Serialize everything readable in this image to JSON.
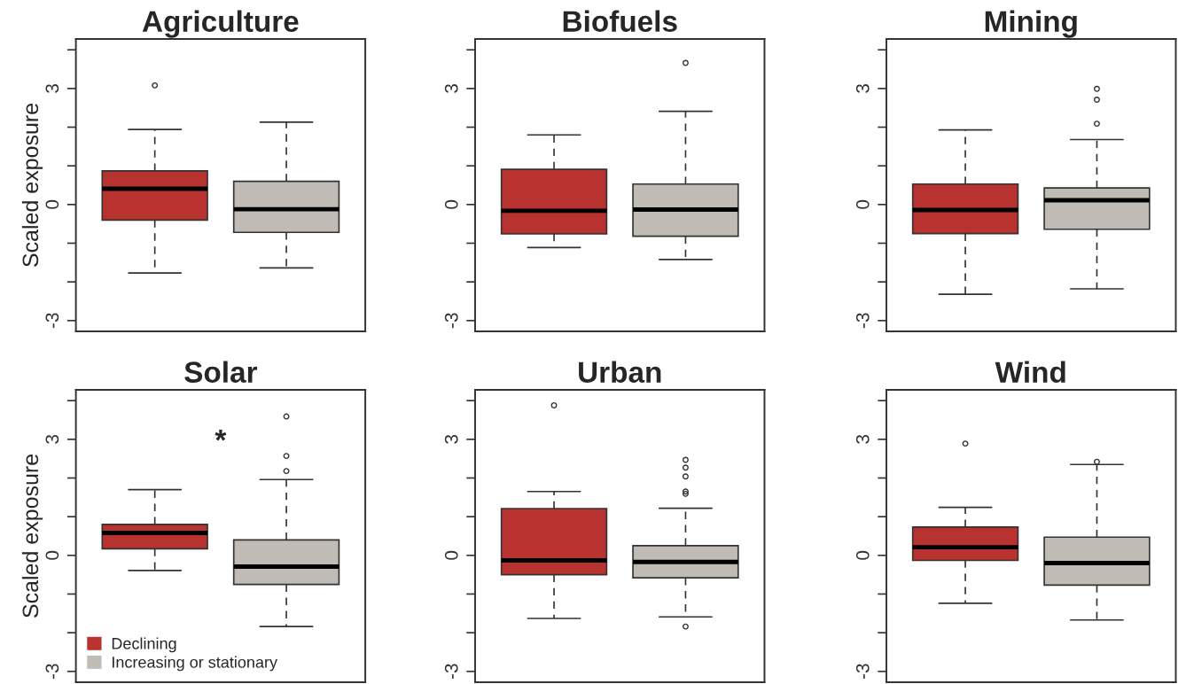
{
  "chart_data": [
    {
      "type": "box",
      "title": "Agriculture",
      "ylabel": "Scaled exposure",
      "categories": [
        null,
        null
      ],
      "ylim": [
        -3.28,
        4.28
      ],
      "yticks": [
        -3,
        {
          "value": -2,
          "label": null
        },
        {
          "value": -1,
          "label": null
        },
        0,
        {
          "value": 1,
          "label": null
        },
        {
          "value": 2,
          "label": null
        },
        3,
        {
          "value": 4,
          "label": null
        }
      ],
      "tick_labels": "y",
      "grid": false,
      "legend": false,
      "series": [
        {
          "color": "#b83230",
          "boxes": [
            {
              "low": -1.77,
              "q1": -0.4,
              "median": 0.41,
              "q3": 0.87,
              "high": 1.94,
              "outliers": [
                3.08
              ]
            },
            null
          ]
        },
        {
          "color": "#c0bbb5",
          "boxes": [
            null,
            {
              "low": -1.64,
              "q1": -0.72,
              "median": -0.12,
              "q3": 0.6,
              "high": 2.13
            }
          ]
        }
      ]
    },
    {
      "type": "box",
      "title": "Biofuels",
      "categories": [
        null,
        null
      ],
      "ylim": [
        -3.28,
        4.28
      ],
      "yticks": [
        -3,
        {
          "value": -2,
          "label": null
        },
        {
          "value": -1,
          "label": null
        },
        0,
        {
          "value": 1,
          "label": null
        },
        {
          "value": 2,
          "label": null
        },
        3,
        {
          "value": 4,
          "label": null
        }
      ],
      "tick_labels": "y",
      "grid": false,
      "legend": false,
      "series": [
        {
          "color": "#b83230",
          "boxes": [
            {
              "low": -1.11,
              "q1": -0.76,
              "median": -0.16,
              "q3": 0.91,
              "high": 1.8
            },
            null
          ]
        },
        {
          "color": "#c0bbb5",
          "boxes": [
            null,
            {
              "low": -1.42,
              "q1": -0.82,
              "median": -0.13,
              "q3": 0.53,
              "high": 2.41,
              "outliers": [
                3.66
              ]
            }
          ]
        }
      ]
    },
    {
      "type": "box",
      "title": "Mining",
      "categories": [
        null,
        null
      ],
      "ylim": [
        -3.28,
        4.28
      ],
      "yticks": [
        -3,
        {
          "value": -2,
          "label": null
        },
        {
          "value": -1,
          "label": null
        },
        0,
        {
          "value": 1,
          "label": null
        },
        {
          "value": 2,
          "label": null
        },
        3,
        {
          "value": 4,
          "label": null
        }
      ],
      "tick_labels": "y",
      "grid": false,
      "legend": false,
      "series": [
        {
          "color": "#b83230",
          "boxes": [
            {
              "low": -2.32,
              "q1": -0.75,
              "median": -0.14,
              "q3": 0.53,
              "high": 1.93
            },
            null
          ]
        },
        {
          "color": "#c0bbb5",
          "boxes": [
            null,
            {
              "low": -2.18,
              "q1": -0.64,
              "median": 0.11,
              "q3": 0.43,
              "high": 1.68,
              "outliers": [
                2.09,
                2.71,
                2.99
              ]
            }
          ]
        }
      ]
    },
    {
      "type": "box",
      "title": "Solar",
      "ylabel": "Scaled exposure",
      "categories": [
        null,
        null
      ],
      "ylim": [
        -3.28,
        4.28
      ],
      "yticks": [
        -3,
        {
          "value": -2,
          "label": null
        },
        {
          "value": -1,
          "label": null
        },
        0,
        {
          "value": 1,
          "label": null
        },
        {
          "value": 2,
          "label": null
        },
        3,
        {
          "value": 4,
          "label": null
        }
      ],
      "tick_labels": "y",
      "grid": false,
      "legend": "bottom left",
      "annotations": [
        "*"
      ],
      "series": [
        {
          "name": "Declining",
          "color": "#b83230",
          "boxes": [
            {
              "low": -0.39,
              "q1": 0.17,
              "median": 0.58,
              "q3": 0.8,
              "high": 1.7
            },
            null
          ]
        },
        {
          "name": "Increasing or stationary",
          "color": "#c0bbb5",
          "boxes": [
            null,
            {
              "low": -1.84,
              "q1": -0.75,
              "median": -0.29,
              "q3": 0.4,
              "high": 1.96,
              "outliers": [
                2.18,
                2.57,
                3.59
              ]
            }
          ]
        }
      ]
    },
    {
      "type": "box",
      "title": "Urban",
      "categories": [
        null,
        null
      ],
      "ylim": [
        -3.28,
        4.28
      ],
      "yticks": [
        -3,
        {
          "value": -2,
          "label": null
        },
        {
          "value": -1,
          "label": null
        },
        0,
        {
          "value": 1,
          "label": null
        },
        {
          "value": 2,
          "label": null
        },
        3,
        {
          "value": 4,
          "label": null
        }
      ],
      "tick_labels": "y",
      "grid": false,
      "legend": false,
      "series": [
        {
          "color": "#b83230",
          "boxes": [
            {
              "low": -1.63,
              "q1": -0.5,
              "median": -0.13,
              "q3": 1.21,
              "high": 1.65,
              "outliers": [
                3.88
              ]
            },
            null
          ]
        },
        {
          "color": "#c0bbb5",
          "boxes": [
            null,
            {
              "low": -1.59,
              "q1": -0.58,
              "median": -0.17,
              "q3": 0.25,
              "high": 1.22,
              "outliers": [
                -1.84,
                1.59,
                1.65,
                2.04,
                2.27,
                2.47
              ]
            }
          ]
        }
      ]
    },
    {
      "type": "box",
      "title": "Wind",
      "categories": [
        null,
        null
      ],
      "ylim": [
        -3.28,
        4.28
      ],
      "yticks": [
        -3,
        {
          "value": -2,
          "label": null
        },
        {
          "value": -1,
          "label": null
        },
        0,
        {
          "value": 1,
          "label": null
        },
        {
          "value": 2,
          "label": null
        },
        3,
        {
          "value": 4,
          "label": null
        }
      ],
      "tick_labels": "y",
      "grid": false,
      "legend": false,
      "series": [
        {
          "color": "#b83230",
          "boxes": [
            {
              "low": -1.24,
              "q1": -0.13,
              "median": 0.21,
              "q3": 0.73,
              "high": 1.24,
              "outliers": [
                2.89
              ]
            },
            null
          ]
        },
        {
          "color": "#c0bbb5",
          "boxes": [
            null,
            {
              "low": -1.67,
              "q1": -0.77,
              "median": -0.2,
              "q3": 0.47,
              "high": 2.35,
              "outliers": [
                2.42
              ]
            }
          ]
        }
      ]
    }
  ]
}
